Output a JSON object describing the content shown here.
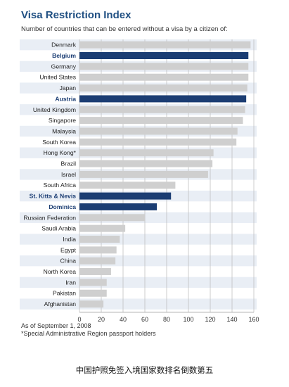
{
  "chart_data": {
    "type": "bar",
    "orientation": "horizontal",
    "title": "Visa Restriction Index",
    "subtitle": "Number of countries that can be entered without a visa by a citizen of:",
    "categories": [
      "Denmark",
      "Belgium",
      "Germany",
      "United States",
      "Japan",
      "Austria",
      "United Kingdom",
      "Singapore",
      "Malaysia",
      "South Korea",
      "Hong Kong*",
      "Brazil",
      "Israel",
      "South Africa",
      "St. Kitts & Nevis",
      "Dominica",
      "Russian Federation",
      "Saudi Arabia",
      "India",
      "Egypt",
      "China",
      "North Korea",
      "Iran",
      "Pakistan",
      "Afghanistan"
    ],
    "values": [
      157,
      155,
      155,
      155,
      154,
      153,
      152,
      150,
      145,
      144,
      123,
      122,
      118,
      88,
      84,
      71,
      60,
      42,
      37,
      34,
      33,
      29,
      25,
      25,
      22
    ],
    "highlighted": [
      "Belgium",
      "Austria",
      "St. Kitts & Nevis",
      "Dominica"
    ],
    "xlim": [
      0,
      160
    ],
    "xticks": [
      0,
      20,
      40,
      60,
      80,
      100,
      120,
      140,
      160
    ],
    "grid": "vertical",
    "colors": {
      "bar": "#cfcfcf",
      "highlight_bar": "#1b3d73",
      "highlight_label": "#1b3d73",
      "stripe": "#e9eef5",
      "title": "#1f4f82"
    }
  },
  "notes": [
    "As of September 1, 2008",
    "*Special Administrative Region passport holders"
  ],
  "caption": "中国护照免签入境国家数排名倒数第五"
}
